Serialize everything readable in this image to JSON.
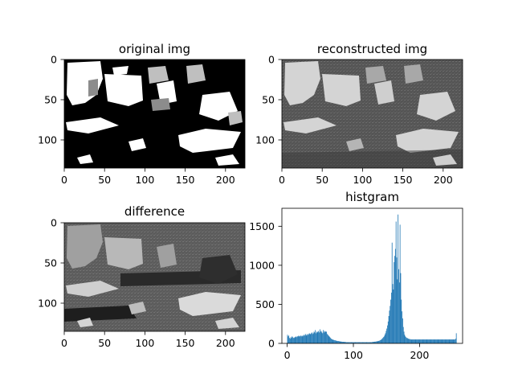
{
  "chart_data": [
    {
      "type": "heatmap",
      "title": "original img",
      "xticks": [
        "0",
        "50",
        "100",
        "150",
        "200"
      ],
      "yticks": [
        "0",
        "50",
        "100"
      ],
      "xlim": [
        0,
        224
      ],
      "ylim": [
        0,
        135
      ],
      "colormap": "binary"
    },
    {
      "type": "heatmap",
      "title": "reconstructed img",
      "xticks": [
        "0",
        "50",
        "100",
        "150",
        "200"
      ],
      "yticks": [
        "0",
        "50",
        "100"
      ],
      "xlim": [
        0,
        224
      ],
      "ylim": [
        0,
        135
      ],
      "colormap": "gray"
    },
    {
      "type": "heatmap",
      "title": "difference",
      "xticks": [
        "0",
        "50",
        "100",
        "150",
        "200"
      ],
      "yticks": [
        "0",
        "50",
        "100"
      ],
      "xlim": [
        0,
        224
      ],
      "ylim": [
        0,
        135
      ],
      "colormap": "gray"
    },
    {
      "type": "bar",
      "title": "histgram",
      "xticks": [
        "0",
        "100",
        "200"
      ],
      "yticks": [
        "0",
        "500",
        "1000",
        "1500"
      ],
      "xlim": [
        -8,
        265
      ],
      "ylim": [
        0,
        1730
      ],
      "color": "#1f77b4",
      "bins_start": 0,
      "values": [
        110,
        90,
        100,
        70,
        60,
        80,
        70,
        90,
        80,
        70,
        70,
        80,
        80,
        90,
        80,
        90,
        90,
        100,
        90,
        90,
        100,
        90,
        100,
        90,
        100,
        110,
        100,
        120,
        110,
        100,
        120,
        110,
        120,
        130,
        120,
        120,
        130,
        140,
        120,
        130,
        150,
        140,
        170,
        130,
        150,
        140,
        150,
        160,
        140,
        180,
        150,
        160,
        140,
        130,
        170,
        140,
        160,
        150,
        150,
        150,
        120,
        110,
        100,
        90,
        80,
        70,
        60,
        55,
        50,
        45,
        45,
        40,
        40,
        35,
        35,
        30,
        30,
        30,
        28,
        25,
        25,
        22,
        22,
        20,
        20,
        20,
        18,
        18,
        18,
        15,
        15,
        15,
        15,
        15,
        15,
        15,
        15,
        15,
        15,
        15,
        15,
        15,
        15,
        15,
        15,
        15,
        15,
        15,
        15,
        15,
        15,
        15,
        15,
        15,
        15,
        15,
        15,
        15,
        15,
        15,
        15,
        15,
        15,
        15,
        15,
        15,
        15,
        15,
        18,
        18,
        20,
        20,
        22,
        22,
        25,
        25,
        28,
        30,
        32,
        35,
        40,
        45,
        50,
        60,
        70,
        80,
        90,
        110,
        130,
        160,
        190,
        230,
        280,
        350,
        420,
        480,
        560,
        650,
        1290,
        760,
        690,
        1040,
        1120,
        1210,
        1560,
        1100,
        820,
        1650,
        950,
        780,
        1520,
        900,
        560,
        410,
        320,
        210,
        150,
        110,
        90,
        80,
        70,
        70,
        60,
        60,
        55,
        55,
        50,
        50,
        50,
        50,
        50,
        50,
        50,
        50,
        50,
        50,
        50,
        50,
        50,
        50,
        50,
        50,
        50,
        50,
        50,
        50,
        50,
        50,
        50,
        50,
        50,
        50,
        50,
        50,
        50,
        50,
        50,
        50,
        50,
        50,
        50,
        50,
        50,
        50,
        50,
        50,
        50,
        50,
        50,
        50,
        50,
        50,
        50,
        50,
        50,
        50,
        50,
        50,
        50,
        50,
        50,
        50,
        50,
        50,
        50,
        50,
        50,
        50,
        50,
        50,
        50,
        50,
        50,
        50,
        60,
        130
      ]
    }
  ]
}
